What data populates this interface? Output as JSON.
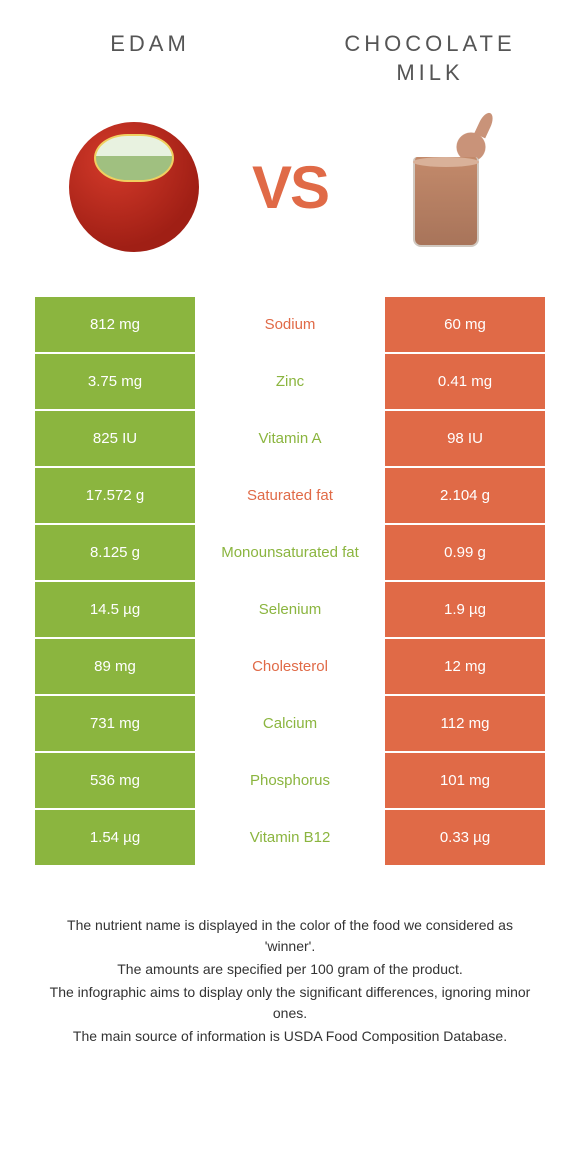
{
  "header": {
    "left": "EDAM",
    "right": "CHOCOLATE MILK",
    "vs": "VS"
  },
  "colors": {
    "left_bg": "#8bb53f",
    "right_bg": "#e06a47",
    "left_text": "#8bb53f",
    "right_text": "#e06a47"
  },
  "rows": [
    {
      "left": "812 mg",
      "label": "Sodium",
      "right": "60 mg",
      "winner": "right"
    },
    {
      "left": "3.75 mg",
      "label": "Zinc",
      "right": "0.41 mg",
      "winner": "left"
    },
    {
      "left": "825 IU",
      "label": "Vitamin A",
      "right": "98 IU",
      "winner": "left"
    },
    {
      "left": "17.572 g",
      "label": "Saturated fat",
      "right": "2.104 g",
      "winner": "right"
    },
    {
      "left": "8.125 g",
      "label": "Monounsaturated fat",
      "right": "0.99 g",
      "winner": "left"
    },
    {
      "left": "14.5 µg",
      "label": "Selenium",
      "right": "1.9 µg",
      "winner": "left"
    },
    {
      "left": "89 mg",
      "label": "Cholesterol",
      "right": "12 mg",
      "winner": "right"
    },
    {
      "left": "731 mg",
      "label": "Calcium",
      "right": "112 mg",
      "winner": "left"
    },
    {
      "left": "536 mg",
      "label": "Phosphorus",
      "right": "101 mg",
      "winner": "left"
    },
    {
      "left": "1.54 µg",
      "label": "Vitamin B12",
      "right": "0.33 µg",
      "winner": "left"
    }
  ],
  "footer": {
    "line1": "The nutrient name is displayed in the color of the food we considered as 'winner'.",
    "line2": "The amounts are specified per 100 gram of the product.",
    "line3": "The infographic aims to display only the significant differences, ignoring minor ones.",
    "line4": "The main source of information is USDA Food Composition Database."
  }
}
